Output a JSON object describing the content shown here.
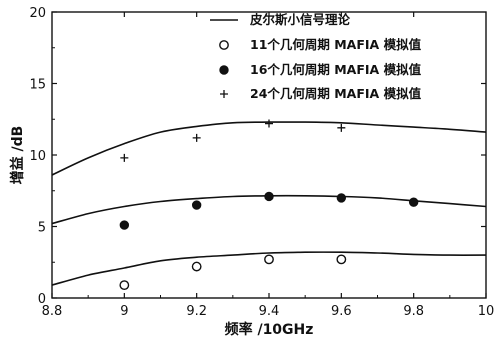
{
  "chart_data": {
    "type": "line",
    "xlabel": "频率 /10GHz",
    "ylabel": "增益 /dB",
    "xlim": [
      8.8,
      10
    ],
    "ylim": [
      0,
      20
    ],
    "xticks": [
      8.8,
      9,
      9.2,
      9.4,
      9.6,
      9.8,
      10
    ],
    "xtick_labels": [
      "8.8",
      "9",
      "9.2",
      "9.4",
      "9.6",
      "9.8",
      "10"
    ],
    "yticks": [
      0,
      5,
      10,
      15,
      20
    ],
    "ytick_labels": [
      "0",
      "5",
      "10",
      "15",
      "20"
    ],
    "grid": false,
    "legend_position": "top-right",
    "series": [
      {
        "name": "皮尔斯小信号理论",
        "style": "line",
        "curves": [
          {
            "x": [
              8.8,
              8.9,
              9.0,
              9.1,
              9.2,
              9.3,
              9.4,
              9.5,
              9.6,
              9.7,
              9.8,
              9.9,
              10.0
            ],
            "y": [
              8.6,
              9.8,
              10.8,
              11.6,
              12.0,
              12.25,
              12.3,
              12.3,
              12.25,
              12.1,
              11.95,
              11.8,
              11.6
            ]
          },
          {
            "x": [
              8.8,
              8.9,
              9.0,
              9.1,
              9.2,
              9.3,
              9.4,
              9.5,
              9.6,
              9.7,
              9.8,
              9.9,
              10.0
            ],
            "y": [
              5.2,
              5.9,
              6.4,
              6.75,
              6.95,
              7.1,
              7.15,
              7.15,
              7.1,
              7.0,
              6.8,
              6.6,
              6.4
            ]
          },
          {
            "x": [
              8.8,
              8.9,
              9.0,
              9.1,
              9.2,
              9.3,
              9.4,
              9.5,
              9.6,
              9.7,
              9.8,
              9.9,
              10.0
            ],
            "y": [
              0.9,
              1.6,
              2.1,
              2.6,
              2.85,
              3.0,
              3.15,
              3.2,
              3.2,
              3.15,
              3.05,
              3.0,
              3.0
            ]
          }
        ]
      },
      {
        "name": "11个几何周期 MAFIA 模拟值",
        "style": "open-circle",
        "x": [
          9.0,
          9.2,
          9.4,
          9.6
        ],
        "y": [
          0.9,
          2.2,
          2.7,
          2.7
        ]
      },
      {
        "name": "16个几何周期 MAFIA 模拟值",
        "style": "filled-circle",
        "x": [
          9.0,
          9.2,
          9.4,
          9.6,
          9.8
        ],
        "y": [
          5.1,
          6.5,
          7.1,
          7.0,
          6.7
        ]
      },
      {
        "name": "24个几何周期 MAFIA 模拟值",
        "style": "plus",
        "x": [
          9.0,
          9.2,
          9.4,
          9.6
        ],
        "y": [
          9.8,
          11.2,
          12.2,
          11.9
        ]
      }
    ]
  }
}
